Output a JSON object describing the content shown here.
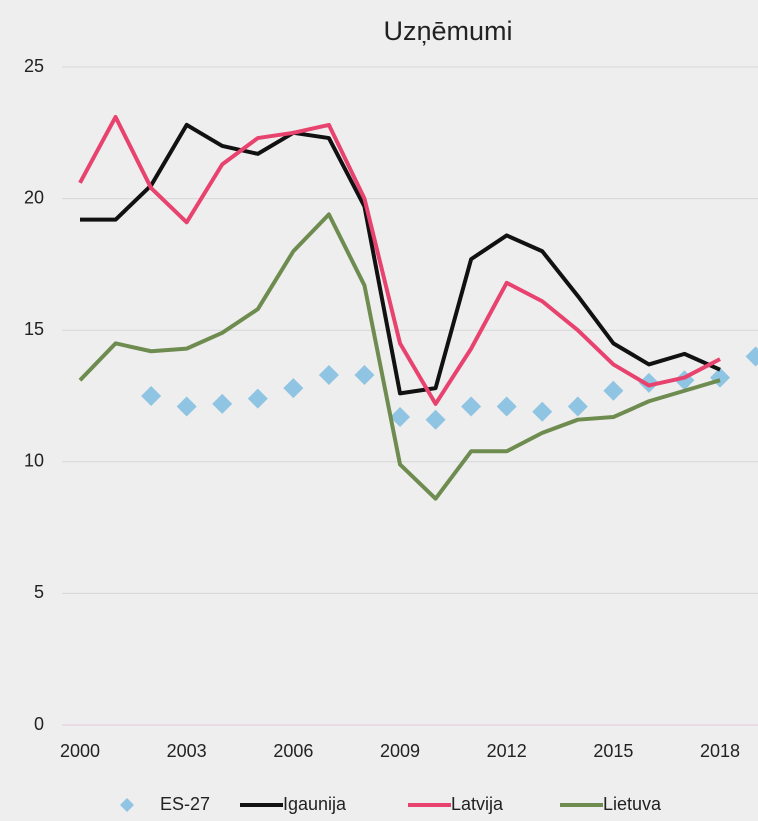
{
  "chart_data": {
    "type": "line",
    "title": "Uzņēmumi",
    "x": [
      2000,
      2001,
      2002,
      2003,
      2004,
      2005,
      2006,
      2007,
      2008,
      2009,
      2010,
      2011,
      2012,
      2013,
      2014,
      2015,
      2016,
      2017,
      2018,
      2019
    ],
    "xlim": [
      2000,
      2019
    ],
    "xticks": [
      2000,
      2003,
      2006,
      2009,
      2012,
      2015,
      2018
    ],
    "ylim": [
      0,
      25
    ],
    "yticks": [
      0,
      5,
      10,
      15,
      20,
      25
    ],
    "grid": true,
    "legend": "bottom",
    "series": [
      {
        "name": "ES-27",
        "type": "scatter",
        "marker": "diamond",
        "color": "#8fc4e2",
        "values": [
          null,
          null,
          12.5,
          12.1,
          12.2,
          12.4,
          12.8,
          13.3,
          13.3,
          11.7,
          11.6,
          12.1,
          12.1,
          11.9,
          12.1,
          12.7,
          13.0,
          13.1,
          13.2,
          14.0
        ]
      },
      {
        "name": "Igaunija",
        "type": "line",
        "color": "#111111",
        "values": [
          19.2,
          19.2,
          20.5,
          22.8,
          22.0,
          21.7,
          22.5,
          22.3,
          19.7,
          12.6,
          12.8,
          17.7,
          18.6,
          18.0,
          16.3,
          14.5,
          13.7,
          14.1,
          13.5,
          null
        ]
      },
      {
        "name": "Latvija",
        "type": "line",
        "color": "#e8436f",
        "values": [
          20.6,
          23.1,
          20.4,
          19.1,
          21.3,
          22.3,
          22.5,
          22.8,
          20.0,
          14.5,
          12.2,
          14.3,
          16.8,
          16.1,
          15.0,
          13.7,
          12.9,
          13.2,
          13.9,
          null
        ]
      },
      {
        "name": "Lietuva",
        "type": "line",
        "color": "#6e8c4f",
        "values": [
          13.1,
          14.5,
          14.2,
          14.3,
          14.9,
          15.8,
          18.0,
          19.4,
          16.7,
          9.9,
          8.6,
          10.4,
          10.4,
          11.1,
          11.6,
          11.7,
          12.3,
          12.7,
          13.1,
          null
        ]
      }
    ]
  }
}
